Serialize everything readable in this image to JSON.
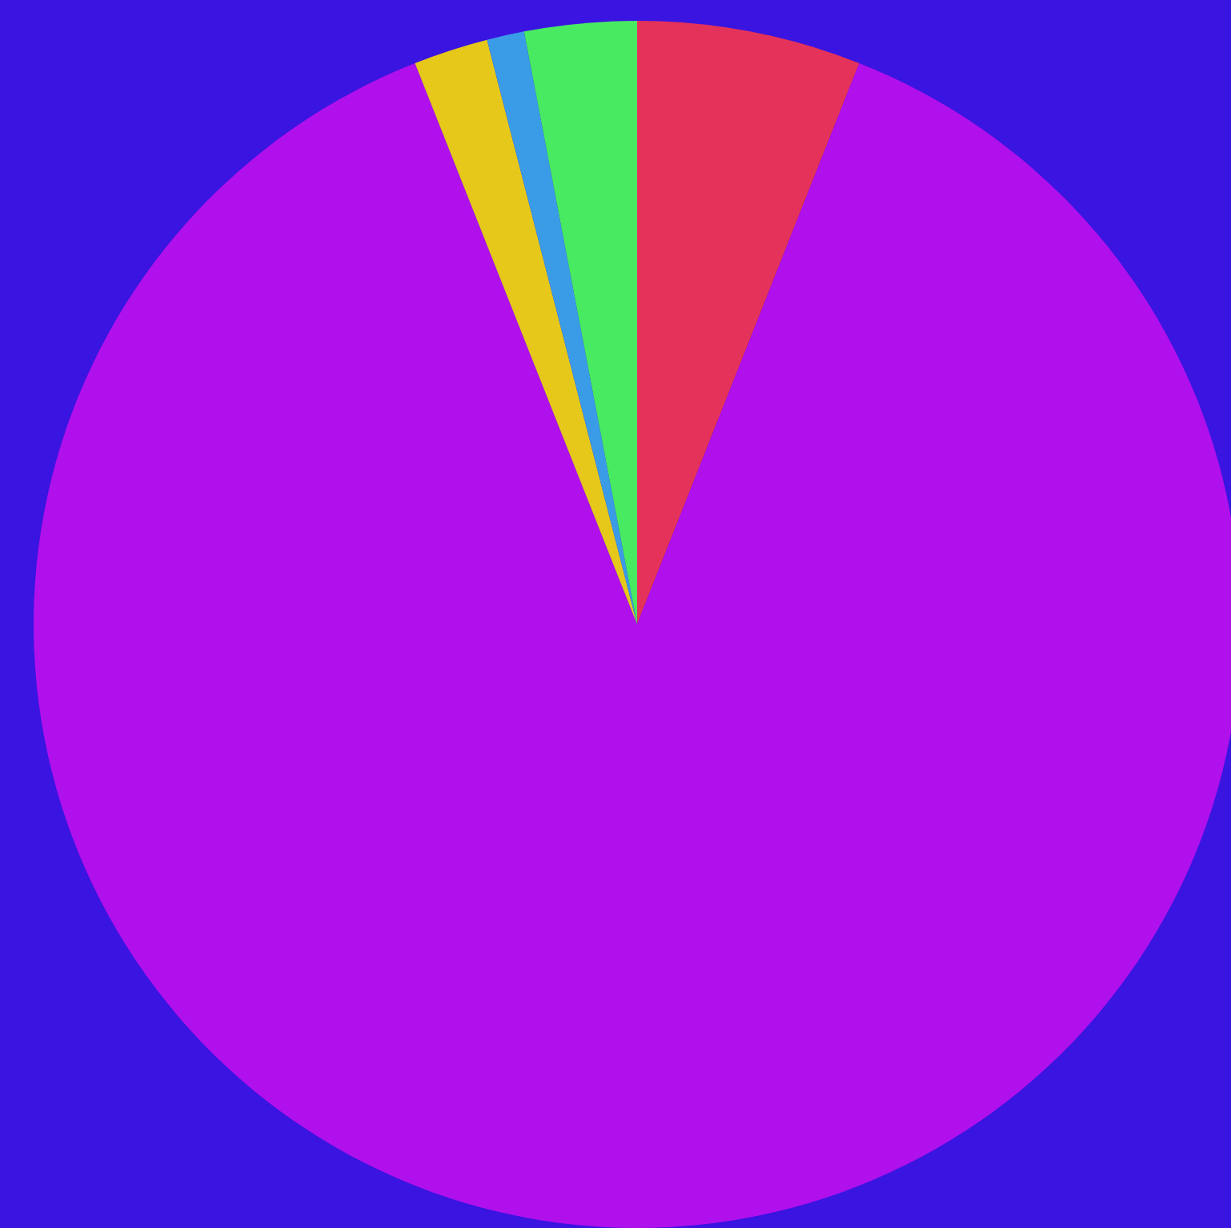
{
  "chart_data": {
    "type": "pie",
    "categories": [
      null,
      null,
      null,
      null,
      null
    ],
    "values": [
      6,
      88,
      2,
      1,
      3
    ],
    "colors": [
      "#e5325a",
      "#b010ec",
      "#e5c81a",
      "#3a9ce6",
      "#48ea62"
    ]
  }
}
